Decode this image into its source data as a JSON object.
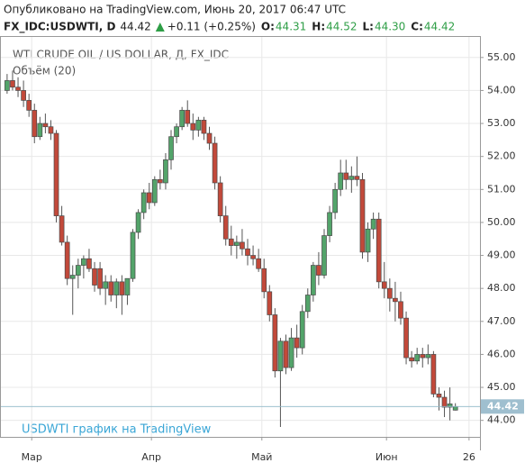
{
  "chart_data": {
    "type": "candlestick",
    "published": "Опубликовано на TradingView.com, Июнь 20, 2017 06:47 UTC",
    "symbol": "FX_IDC:USDWTI, D",
    "price": "44.42",
    "change": "+0.11 (+0.25%)",
    "ohlc": [
      {
        "label": "O:",
        "value": "44.31"
      },
      {
        "label": "H:",
        "value": "44.52"
      },
      {
        "label": "L:",
        "value": "44.30"
      },
      {
        "label": "C:",
        "value": "44.42"
      }
    ],
    "title": "WTI CRUDE OIL / US DOLLAR, Д, FX_IDC",
    "subtitle": "Объём (20)",
    "watermark": "USDWTI график на TradingView",
    "last_price": 44.42,
    "up_color": "#53a46a",
    "down_color": "#c2493a",
    "grid": true,
    "categories": [
      null,
      null,
      null,
      null,
      null,
      null,
      null,
      null,
      null,
      null,
      null,
      null,
      null,
      null,
      null,
      null,
      null,
      null,
      null,
      null,
      null,
      null,
      null,
      null,
      null,
      null,
      null,
      null,
      null,
      null,
      null,
      null,
      null,
      null,
      null,
      null,
      null,
      null,
      null,
      null,
      null,
      null,
      null,
      null,
      null,
      null,
      null,
      null,
      null,
      null,
      null,
      null,
      null,
      null,
      null,
      null,
      null,
      null,
      null,
      null,
      null,
      null,
      null,
      null,
      null,
      null,
      null,
      null,
      null,
      null,
      null,
      null,
      null,
      null,
      null,
      null,
      null,
      null,
      null,
      null,
      null,
      null,
      null
    ],
    "open": [
      54.0,
      54.3,
      54.1,
      54.0,
      53.7,
      53.4,
      52.6,
      53.0,
      52.9,
      52.7,
      50.2,
      49.4,
      48.3,
      48.4,
      48.7,
      48.9,
      48.6,
      48.6,
      48.0,
      48.2,
      47.8,
      48.2,
      47.8,
      48.3,
      49.7,
      50.3,
      50.9,
      50.6,
      51.3,
      51.2,
      51.9,
      52.6,
      52.9,
      53.4,
      53.0,
      52.8,
      53.1,
      52.7,
      52.4,
      51.2,
      50.2,
      49.5,
      49.3,
      49.4,
      49.2,
      49.0,
      48.9,
      48.6,
      47.9,
      47.2,
      45.5,
      46.4,
      45.6,
      46.5,
      46.2,
      47.3,
      47.8,
      48.7,
      48.4,
      49.6,
      50.3,
      51.0,
      51.5,
      51.3,
      51.4,
      51.3,
      49.1,
      49.8,
      50.1,
      48.2,
      48.0,
      47.7,
      47.6,
      47.1,
      45.9,
      45.8,
      46.0,
      45.9,
      46.0,
      44.8,
      44.7,
      44.4,
      44.31
    ],
    "high": [
      54.5,
      54.6,
      54.4,
      54.3,
      53.9,
      53.6,
      53.2,
      53.3,
      53.1,
      52.8,
      50.5,
      49.6,
      48.7,
      48.9,
      49.0,
      49.2,
      48.8,
      48.8,
      48.4,
      48.4,
      48.3,
      48.4,
      48.3,
      49.8,
      50.4,
      51.0,
      51.2,
      51.4,
      51.6,
      52.1,
      52.8,
      53.0,
      53.5,
      53.7,
      53.3,
      53.2,
      53.2,
      52.9,
      52.6,
      51.4,
      50.5,
      49.9,
      49.6,
      49.8,
      49.5,
      49.3,
      49.2,
      48.9,
      48.1,
      47.4,
      46.5,
      46.6,
      46.8,
      46.9,
      47.5,
      48.0,
      48.8,
      49.1,
      49.8,
      50.5,
      51.2,
      51.9,
      51.9,
      51.7,
      52.0,
      51.5,
      50.0,
      50.3,
      50.3,
      48.8,
      48.3,
      48.2,
      47.9,
      47.3,
      46.1,
      46.2,
      46.2,
      46.3,
      46.1,
      45.0,
      44.9,
      45.0,
      44.52
    ],
    "low": [
      53.9,
      54.0,
      53.8,
      53.5,
      53.2,
      52.4,
      52.5,
      52.7,
      52.5,
      50.0,
      49.3,
      48.1,
      47.2,
      48.0,
      48.3,
      48.5,
      47.9,
      47.8,
      47.5,
      47.6,
      47.4,
      47.2,
      47.5,
      48.2,
      49.5,
      50.1,
      50.4,
      50.5,
      51.0,
      51.0,
      51.6,
      52.4,
      52.8,
      52.9,
      52.5,
      52.6,
      52.5,
      52.2,
      51.0,
      50.0,
      49.3,
      49.0,
      48.9,
      49.0,
      48.7,
      48.7,
      48.5,
      47.7,
      47.0,
      45.3,
      43.8,
      45.4,
      45.5,
      45.9,
      46.0,
      47.1,
      47.6,
      48.1,
      48.3,
      49.4,
      50.1,
      50.8,
      51.0,
      50.9,
      51.1,
      48.9,
      48.8,
      49.5,
      48.0,
      47.7,
      47.3,
      47.0,
      46.9,
      45.7,
      45.6,
      45.7,
      45.6,
      45.7,
      44.7,
      44.3,
      44.1,
      44.0,
      44.3
    ],
    "close": [
      54.3,
      54.1,
      54.0,
      53.7,
      53.4,
      52.6,
      53.0,
      52.9,
      52.7,
      50.2,
      49.4,
      48.3,
      48.4,
      48.7,
      48.9,
      48.6,
      48.1,
      48.0,
      48.2,
      47.8,
      48.2,
      47.8,
      48.3,
      49.7,
      50.3,
      50.9,
      50.6,
      51.3,
      51.2,
      51.9,
      52.6,
      52.9,
      53.4,
      53.0,
      52.8,
      53.1,
      52.7,
      52.4,
      51.2,
      50.2,
      49.5,
      49.3,
      49.4,
      49.2,
      49.0,
      48.9,
      48.6,
      47.9,
      47.2,
      45.5,
      46.4,
      45.6,
      46.5,
      46.2,
      47.3,
      47.8,
      48.7,
      48.4,
      49.6,
      50.3,
      51.0,
      51.5,
      51.3,
      51.4,
      51.3,
      49.1,
      49.8,
      50.1,
      48.2,
      48.0,
      47.7,
      47.6,
      47.1,
      45.9,
      45.8,
      46.0,
      45.9,
      46.0,
      44.8,
      44.7,
      44.4,
      44.5,
      44.42
    ],
    "xlim": [
      -1.3,
      86.5
    ],
    "xticks": [
      {
        "value": 4.5,
        "label": "Мар"
      },
      {
        "value": 26.4,
        "label": "Апр"
      },
      {
        "value": 46.6,
        "label": "Май"
      },
      {
        "value": 69.4,
        "label": "Июн"
      },
      {
        "value": 84.5,
        "label": "26"
      }
    ],
    "ylim": [
      43.5,
      55.65
    ],
    "yticks": [
      {
        "value": 44,
        "label": "44.00"
      },
      {
        "value": 45,
        "label": "45.00"
      },
      {
        "value": 46,
        "label": "46.00"
      },
      {
        "value": 47,
        "label": "47.00"
      },
      {
        "value": 48,
        "label": "48.00"
      },
      {
        "value": 49,
        "label": "49.00"
      },
      {
        "value": 50,
        "label": "50.00"
      },
      {
        "value": 51,
        "label": "51.00"
      },
      {
        "value": 52,
        "label": "52.00"
      },
      {
        "value": 53,
        "label": "53.00"
      },
      {
        "value": 54,
        "label": "54.00"
      },
      {
        "value": 55,
        "label": "55.00"
      }
    ]
  }
}
